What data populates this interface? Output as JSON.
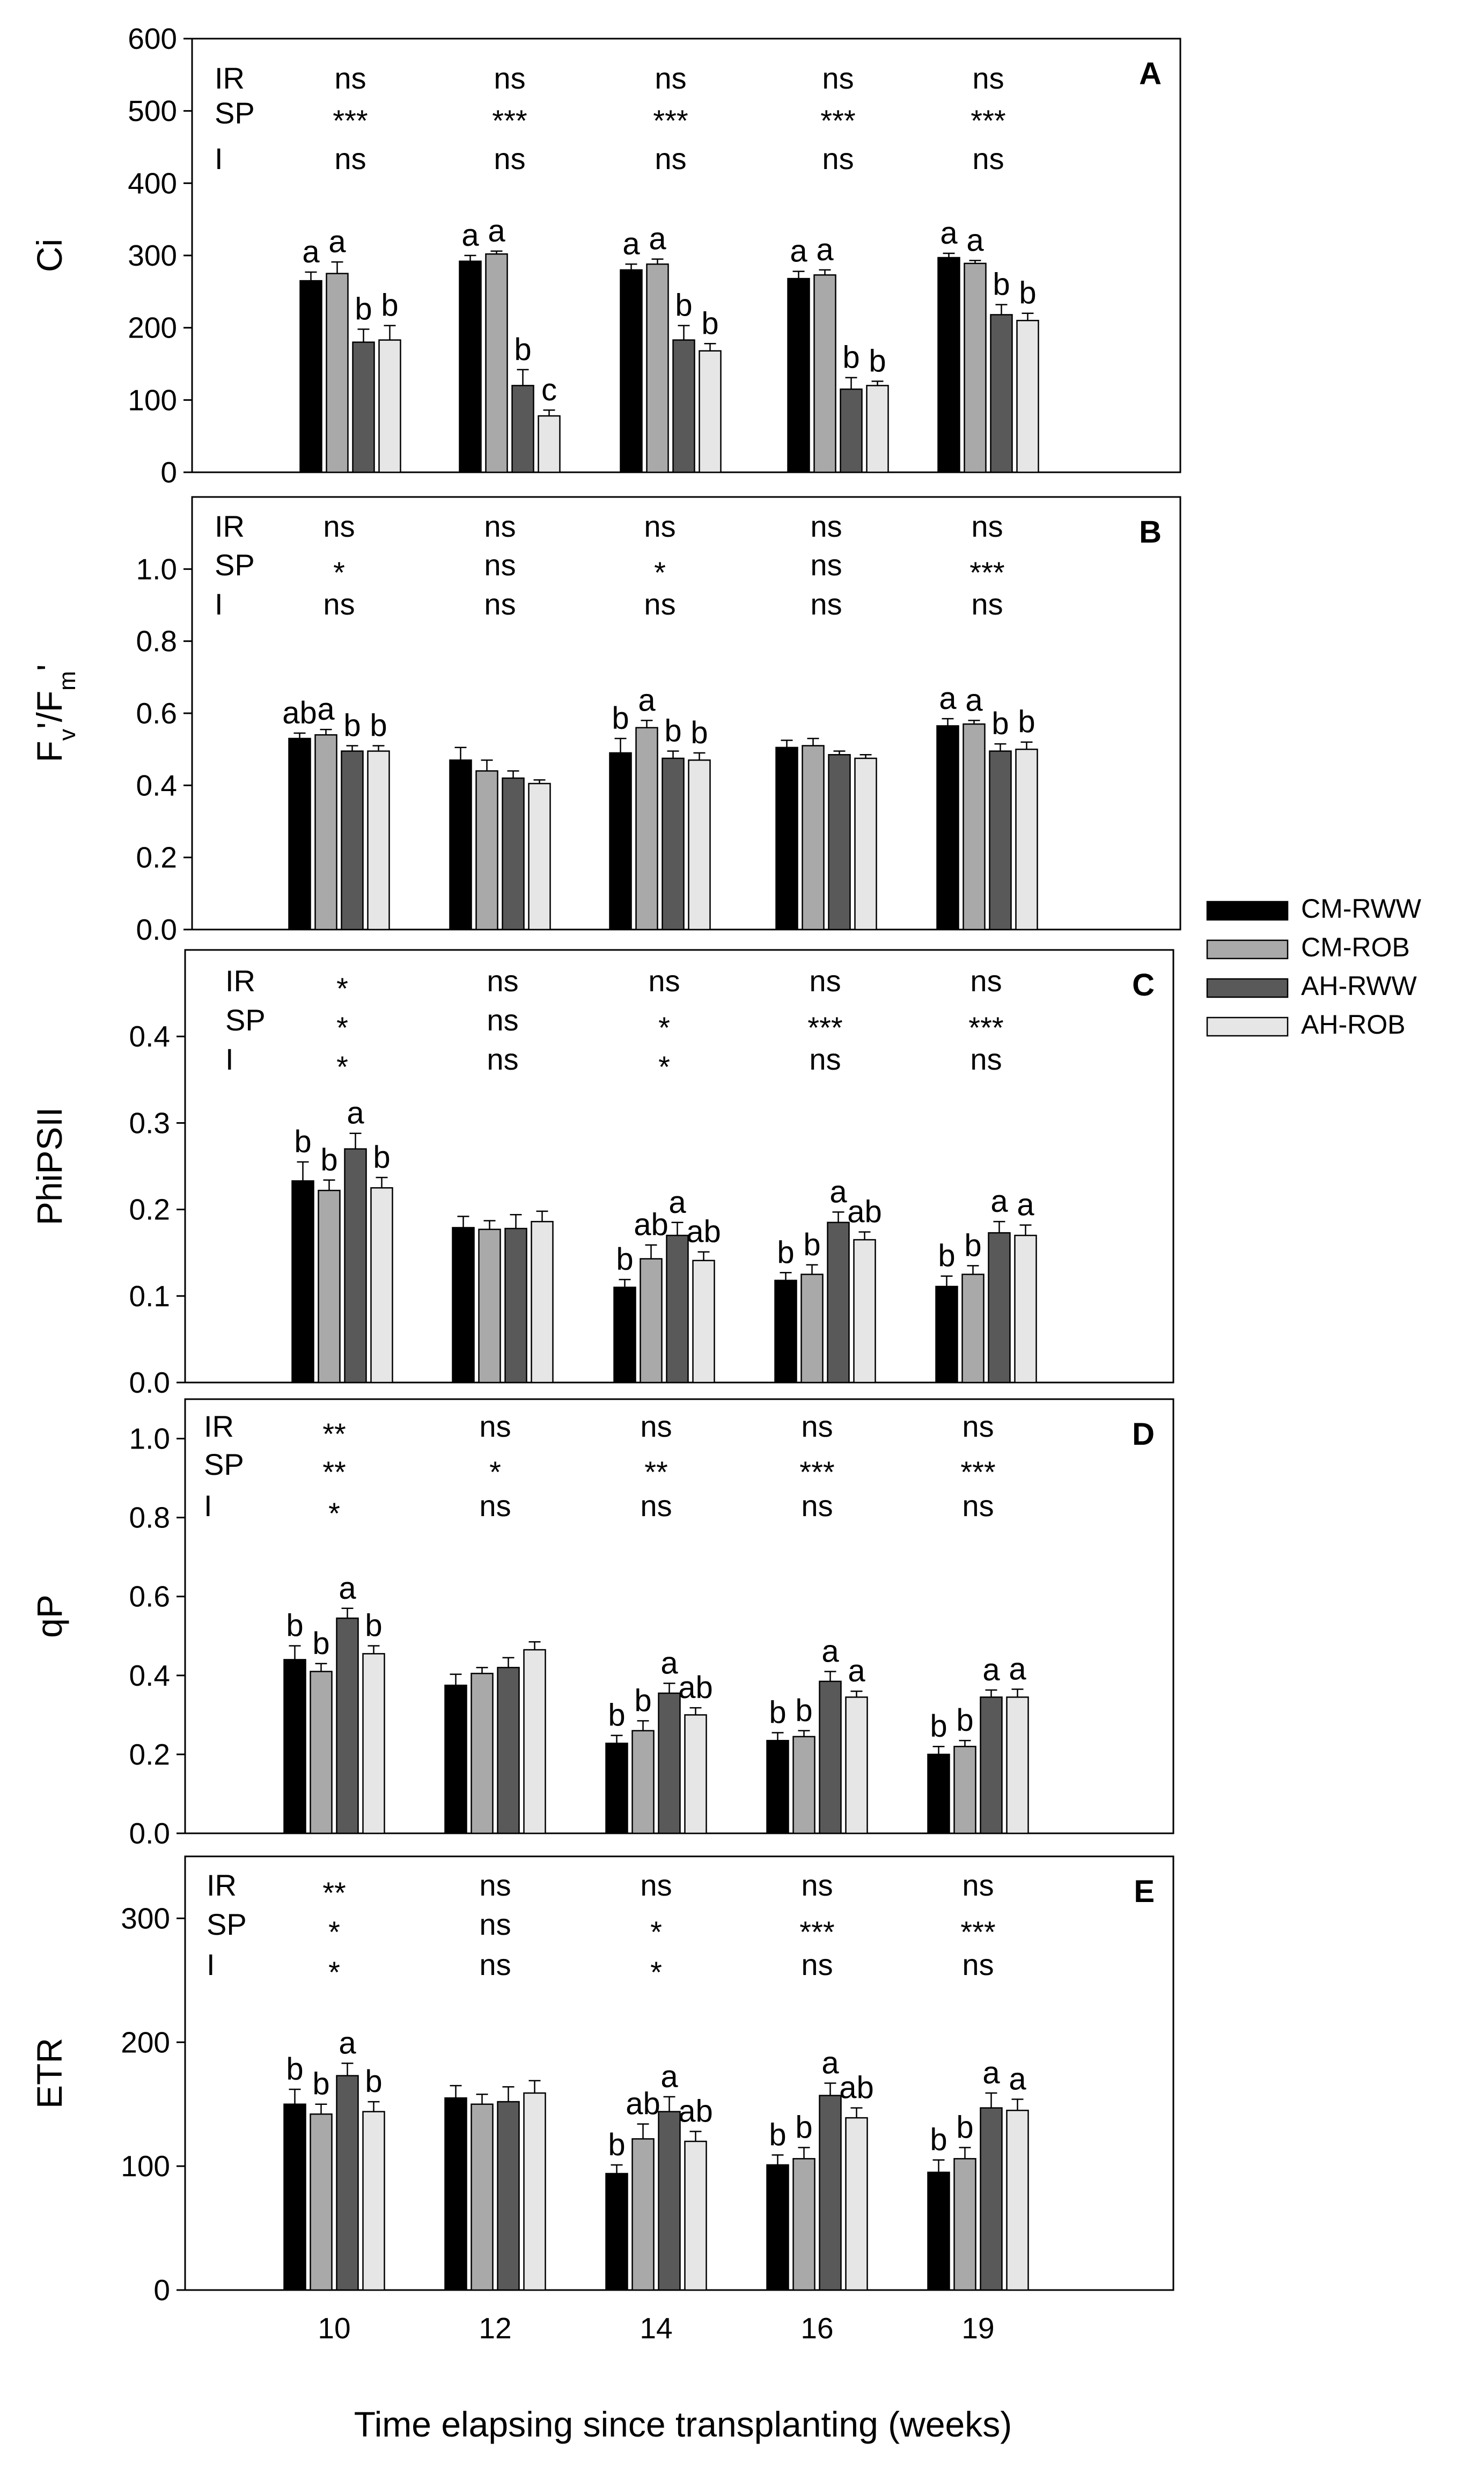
{
  "figure": {
    "xlabel": "Time elapsing since transplanting (weeks)",
    "legend": [
      {
        "name": "CM-RWW",
        "color": "#000000"
      },
      {
        "name": "CM-ROB",
        "color": "#a9a9a9"
      },
      {
        "name": "AH-RWW",
        "color": "#595959"
      },
      {
        "name": "AH-ROB",
        "color": "#e6e6e6"
      }
    ]
  },
  "chart_data": [
    {
      "type": "bar",
      "panel": "A",
      "ylabel": "Ci",
      "ylim": [
        0,
        600
      ],
      "yticks": [
        0,
        100,
        200,
        300,
        400,
        500,
        600
      ],
      "categories": [
        "10",
        "12",
        "14",
        "16",
        "19"
      ],
      "series": [
        {
          "name": "CM-RWW",
          "values": [
            265,
            292,
            280,
            268,
            297
          ],
          "errors": [
            12,
            8,
            8,
            10,
            6
          ]
        },
        {
          "name": "CM-ROB",
          "values": [
            275,
            302,
            288,
            273,
            289
          ],
          "errors": [
            16,
            4,
            7,
            7,
            4
          ]
        },
        {
          "name": "AH-RWW",
          "values": [
            180,
            120,
            183,
            115,
            218
          ],
          "errors": [
            18,
            22,
            20,
            16,
            14
          ]
        },
        {
          "name": "AH-ROB",
          "values": [
            183,
            78,
            168,
            120,
            210
          ],
          "errors": [
            20,
            8,
            10,
            6,
            10
          ]
        }
      ],
      "letters": [
        [
          "a",
          "a",
          "b",
          "b"
        ],
        [
          "a",
          "a",
          "b",
          "c"
        ],
        [
          "a",
          "a",
          "b",
          "b"
        ],
        [
          "a",
          "a",
          "b",
          "b"
        ],
        [
          "a",
          "a",
          "b",
          "b"
        ]
      ],
      "stats": [
        {
          "label": "IR",
          "values": [
            "ns",
            "ns",
            "ns",
            "ns",
            "ns"
          ]
        },
        {
          "label": "SP",
          "values": [
            "***",
            "***",
            "***",
            "***",
            "***"
          ]
        },
        {
          "label": "I",
          "values": [
            "ns",
            "ns",
            "ns",
            "ns",
            "ns"
          ]
        }
      ]
    },
    {
      "type": "bar",
      "panel": "B",
      "ylabel": "Fv'/Fm'",
      "ylim": [
        0,
        1.2
      ],
      "yticks": [
        "0.0",
        "0.2",
        "0.4",
        "0.6",
        "0.8",
        "1.0"
      ],
      "categories": [
        "10",
        "12",
        "14",
        "16",
        "19"
      ],
      "series": [
        {
          "name": "CM-RWW",
          "values": [
            0.53,
            0.47,
            0.49,
            0.505,
            0.565
          ],
          "errors": [
            0.015,
            0.035,
            0.04,
            0.02,
            0.02
          ]
        },
        {
          "name": "CM-ROB",
          "values": [
            0.54,
            0.44,
            0.56,
            0.51,
            0.57
          ],
          "errors": [
            0.015,
            0.03,
            0.02,
            0.02,
            0.01
          ]
        },
        {
          "name": "AH-RWW",
          "values": [
            0.495,
            0.42,
            0.475,
            0.485,
            0.495
          ],
          "errors": [
            0.015,
            0.02,
            0.02,
            0.01,
            0.02
          ]
        },
        {
          "name": "AH-ROB",
          "values": [
            0.495,
            0.405,
            0.47,
            0.475,
            0.5
          ],
          "errors": [
            0.015,
            0.01,
            0.02,
            0.01,
            0.02
          ]
        }
      ],
      "letters": [
        [
          "ab",
          "a",
          "b",
          "b"
        ],
        [
          "",
          "",
          "",
          ""
        ],
        [
          "b",
          "a",
          "b",
          "b"
        ],
        [
          "",
          "",
          "",
          ""
        ],
        [
          "a",
          "a",
          "b",
          "b"
        ]
      ],
      "stats": [
        {
          "label": "IR",
          "values": [
            "ns",
            "ns",
            "ns",
            "ns",
            "ns"
          ]
        },
        {
          "label": "SP",
          "values": [
            "*",
            "ns",
            "*",
            "ns",
            "***"
          ]
        },
        {
          "label": "I",
          "values": [
            "ns",
            "ns",
            "ns",
            "ns",
            "ns"
          ]
        }
      ]
    },
    {
      "type": "bar",
      "panel": "C",
      "ylabel": "PhiPSII",
      "ylim": [
        0,
        0.5
      ],
      "yticks": [
        "0.0",
        "0.1",
        "0.2",
        "0.3",
        "0.4"
      ],
      "categories": [
        "10",
        "12",
        "14",
        "16",
        "19"
      ],
      "series": [
        {
          "name": "CM-RWW",
          "values": [
            0.233,
            0.179,
            0.11,
            0.118,
            0.111
          ],
          "errors": [
            0.022,
            0.013,
            0.009,
            0.009,
            0.012
          ]
        },
        {
          "name": "CM-ROB",
          "values": [
            0.222,
            0.177,
            0.143,
            0.125,
            0.125
          ],
          "errors": [
            0.012,
            0.01,
            0.016,
            0.011,
            0.01
          ]
        },
        {
          "name": "AH-RWW",
          "values": [
            0.27,
            0.178,
            0.17,
            0.185,
            0.173
          ],
          "errors": [
            0.018,
            0.016,
            0.015,
            0.012,
            0.013
          ]
        },
        {
          "name": "AH-ROB",
          "values": [
            0.225,
            0.186,
            0.141,
            0.165,
            0.17
          ],
          "errors": [
            0.012,
            0.012,
            0.01,
            0.009,
            0.012
          ]
        }
      ],
      "letters": [
        [
          "b",
          "b",
          "a",
          "b"
        ],
        [
          "",
          "",
          "",
          ""
        ],
        [
          "b",
          "ab",
          "a",
          "ab"
        ],
        [
          "b",
          "b",
          "a",
          "ab"
        ],
        [
          "b",
          "b",
          "a",
          "a"
        ]
      ],
      "stats": [
        {
          "label": "IR",
          "values": [
            "*",
            "ns",
            "ns",
            "ns",
            "ns"
          ]
        },
        {
          "label": "SP",
          "values": [
            "*",
            "ns",
            "*",
            "***",
            "***"
          ]
        },
        {
          "label": "I",
          "values": [
            "*",
            "ns",
            "*",
            "ns",
            "ns"
          ]
        }
      ]
    },
    {
      "type": "bar",
      "panel": "D",
      "ylabel": "qP",
      "ylim": [
        0,
        1.1
      ],
      "yticks": [
        "0.0",
        "0.2",
        "0.4",
        "0.6",
        "0.8",
        "1.0"
      ],
      "categories": [
        "10",
        "12",
        "14",
        "16",
        "19"
      ],
      "series": [
        {
          "name": "CM-RWW",
          "values": [
            0.44,
            0.375,
            0.228,
            0.235,
            0.2
          ],
          "errors": [
            0.035,
            0.028,
            0.02,
            0.02,
            0.02
          ]
        },
        {
          "name": "CM-ROB",
          "values": [
            0.41,
            0.405,
            0.26,
            0.245,
            0.22
          ],
          "errors": [
            0.02,
            0.015,
            0.025,
            0.015,
            0.015
          ]
        },
        {
          "name": "AH-RWW",
          "values": [
            0.545,
            0.42,
            0.355,
            0.385,
            0.345
          ],
          "errors": [
            0.025,
            0.025,
            0.025,
            0.025,
            0.018
          ]
        },
        {
          "name": "AH-ROB",
          "values": [
            0.455,
            0.465,
            0.3,
            0.345,
            0.345
          ],
          "errors": [
            0.02,
            0.02,
            0.018,
            0.015,
            0.02
          ]
        }
      ],
      "letters": [
        [
          "b",
          "b",
          "a",
          "b"
        ],
        [
          "",
          "",
          "",
          ""
        ],
        [
          "b",
          "b",
          "a",
          "ab"
        ],
        [
          "b",
          "b",
          "a",
          "a"
        ],
        [
          "b",
          "b",
          "a",
          "a"
        ]
      ],
      "stats": [
        {
          "label": "IR",
          "values": [
            "**",
            "ns",
            "ns",
            "ns",
            "ns"
          ]
        },
        {
          "label": "SP",
          "values": [
            "**",
            "*",
            "**",
            "***",
            "***"
          ]
        },
        {
          "label": "I",
          "values": [
            "*",
            "ns",
            "ns",
            "ns",
            "ns"
          ]
        }
      ]
    },
    {
      "type": "bar",
      "panel": "E",
      "ylabel": "ETR",
      "ylim": [
        0,
        350
      ],
      "yticks": [
        0,
        100,
        200,
        300
      ],
      "categories": [
        "10",
        "12",
        "14",
        "16",
        "19"
      ],
      "series": [
        {
          "name": "CM-RWW",
          "values": [
            150,
            155,
            94,
            101,
            95
          ],
          "errors": [
            12,
            10,
            7,
            8,
            10
          ]
        },
        {
          "name": "CM-ROB",
          "values": [
            142,
            150,
            122,
            106,
            106
          ],
          "errors": [
            8,
            8,
            12,
            9,
            9
          ]
        },
        {
          "name": "AH-RWW",
          "values": [
            173,
            152,
            144,
            157,
            147
          ],
          "errors": [
            10,
            12,
            12,
            10,
            12
          ]
        },
        {
          "name": "AH-ROB",
          "values": [
            144,
            159,
            120,
            139,
            145
          ],
          "errors": [
            8,
            10,
            8,
            8,
            9
          ]
        }
      ],
      "letters": [
        [
          "b",
          "b",
          "a",
          "b"
        ],
        [
          "",
          "",
          "",
          ""
        ],
        [
          "b",
          "ab",
          "a",
          "ab"
        ],
        [
          "b",
          "b",
          "a",
          "ab"
        ],
        [
          "b",
          "b",
          "a",
          "a"
        ]
      ],
      "stats": [
        {
          "label": "IR",
          "values": [
            "**",
            "ns",
            "ns",
            "ns",
            "ns"
          ]
        },
        {
          "label": "SP",
          "values": [
            "*",
            "ns",
            "*",
            "***",
            "***"
          ]
        },
        {
          "label": "I",
          "values": [
            "*",
            "ns",
            "*",
            "ns",
            "ns"
          ]
        }
      ]
    }
  ]
}
